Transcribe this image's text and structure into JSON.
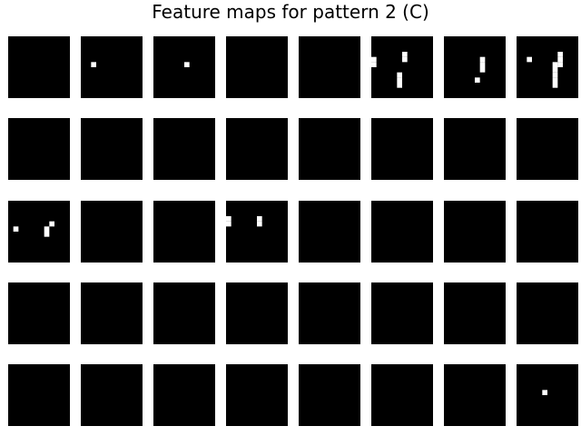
{
  "title": "Feature maps for pattern 2 (C)",
  "chart_data": {
    "type": "heatmap",
    "title": "Feature maps for pattern 2 (C)",
    "rows": 5,
    "cols": 8,
    "map_size": 12,
    "colormap": "gray",
    "background": "#000000",
    "active": "#ffffff",
    "maps": [
      {
        "row": 0,
        "col": 0,
        "pixels": []
      },
      {
        "row": 0,
        "col": 1,
        "pixels": [
          [
            2,
            5
          ]
        ]
      },
      {
        "row": 0,
        "col": 2,
        "pixels": [
          [
            6,
            5
          ]
        ]
      },
      {
        "row": 0,
        "col": 3,
        "pixels": []
      },
      {
        "row": 0,
        "col": 4,
        "pixels": []
      },
      {
        "row": 0,
        "col": 5,
        "pixels": [
          [
            0,
            4
          ],
          [
            0,
            5
          ],
          [
            6,
            3
          ],
          [
            6,
            4
          ],
          [
            5,
            7
          ],
          [
            5,
            8
          ],
          [
            5,
            9
          ]
        ]
      },
      {
        "row": 0,
        "col": 6,
        "pixels": [
          [
            7,
            4
          ],
          [
            7,
            5
          ],
          [
            7,
            6
          ],
          [
            6,
            8
          ]
        ]
      },
      {
        "row": 0,
        "col": 7,
        "pixels": [
          [
            2,
            4
          ],
          [
            8,
            3
          ],
          [
            8,
            4
          ],
          [
            8,
            5
          ],
          [
            7,
            5
          ],
          [
            7,
            6
          ],
          [
            7,
            7
          ],
          [
            7,
            8
          ],
          [
            7,
            9
          ]
        ]
      },
      {
        "row": 1,
        "col": 0,
        "pixels": []
      },
      {
        "row": 1,
        "col": 1,
        "pixels": []
      },
      {
        "row": 1,
        "col": 2,
        "pixels": []
      },
      {
        "row": 1,
        "col": 3,
        "pixels": []
      },
      {
        "row": 1,
        "col": 4,
        "pixels": []
      },
      {
        "row": 1,
        "col": 5,
        "pixels": []
      },
      {
        "row": 1,
        "col": 6,
        "pixels": []
      },
      {
        "row": 1,
        "col": 7,
        "pixels": []
      },
      {
        "row": 2,
        "col": 0,
        "pixels": [
          [
            1,
            5
          ],
          [
            8,
            4
          ],
          [
            7,
            5
          ],
          [
            7,
            6
          ]
        ]
      },
      {
        "row": 2,
        "col": 1,
        "pixels": []
      },
      {
        "row": 2,
        "col": 2,
        "pixels": []
      },
      {
        "row": 2,
        "col": 3,
        "pixels": [
          [
            0,
            3
          ],
          [
            0,
            4
          ],
          [
            6,
            3
          ],
          [
            6,
            4
          ]
        ]
      },
      {
        "row": 2,
        "col": 4,
        "pixels": []
      },
      {
        "row": 2,
        "col": 5,
        "pixels": []
      },
      {
        "row": 2,
        "col": 6,
        "pixels": []
      },
      {
        "row": 2,
        "col": 7,
        "pixels": []
      },
      {
        "row": 3,
        "col": 0,
        "pixels": []
      },
      {
        "row": 3,
        "col": 1,
        "pixels": []
      },
      {
        "row": 3,
        "col": 2,
        "pixels": []
      },
      {
        "row": 3,
        "col": 3,
        "pixels": []
      },
      {
        "row": 3,
        "col": 4,
        "pixels": []
      },
      {
        "row": 3,
        "col": 5,
        "pixels": []
      },
      {
        "row": 3,
        "col": 6,
        "pixels": []
      },
      {
        "row": 3,
        "col": 7,
        "pixels": []
      },
      {
        "row": 4,
        "col": 0,
        "pixels": []
      },
      {
        "row": 4,
        "col": 1,
        "pixels": []
      },
      {
        "row": 4,
        "col": 2,
        "pixels": []
      },
      {
        "row": 4,
        "col": 3,
        "pixels": []
      },
      {
        "row": 4,
        "col": 4,
        "pixels": []
      },
      {
        "row": 4,
        "col": 5,
        "pixels": []
      },
      {
        "row": 4,
        "col": 6,
        "pixels": []
      },
      {
        "row": 4,
        "col": 7,
        "pixels": [
          [
            5,
            5
          ]
        ]
      }
    ]
  }
}
